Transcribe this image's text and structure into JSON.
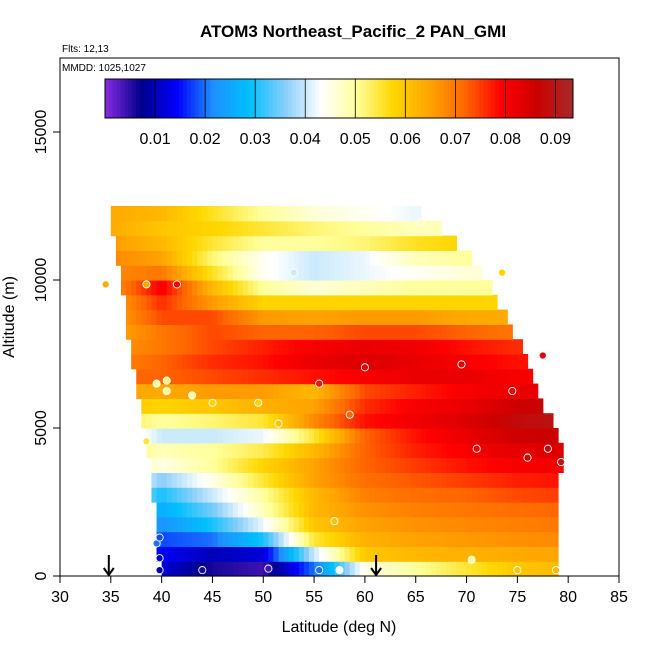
{
  "chart_data": {
    "type": "heatmap",
    "title": "ATOM3 Northeast_Pacific_2 PAN_GMI",
    "notes": [
      "Flts: 12,13",
      "MMDD: 1025,1027"
    ],
    "xlabel": "Latitude (deg N)",
    "ylabel": "Altitude (m)",
    "xlim": [
      30,
      85
    ],
    "ylim": [
      0,
      17500
    ],
    "x_ticks": [
      30,
      35,
      40,
      45,
      50,
      55,
      60,
      65,
      70,
      75,
      80,
      85
    ],
    "y_ticks": [
      0,
      5000,
      10000,
      15000
    ],
    "colorbar": {
      "min": 0.0,
      "max": 0.0935,
      "ticks": [
        0.01,
        0.02,
        0.03,
        0.04,
        0.05,
        0.06,
        0.07,
        0.08,
        0.09
      ],
      "colors": [
        "#8a2be2",
        "#00008b",
        "#0000ff",
        "#1e90ff",
        "#00bfff",
        "#87cefa",
        "#ffffff",
        "#ffff99",
        "#ffd700",
        "#ffa500",
        "#ff6600",
        "#ff0000",
        "#cc0000",
        "#a52a2a"
      ]
    },
    "arrows_x": [
      34.8,
      61.1
    ],
    "grid": {
      "lat_step": 0.5,
      "altitude_levels_m": [
        250,
        750,
        1250,
        1750,
        2250,
        2750,
        3250,
        3750,
        4250,
        4750,
        5250,
        5750,
        6250,
        6750,
        7250,
        7750,
        8250,
        8750,
        9250,
        9750,
        10250,
        10750,
        11250,
        11750,
        12250
      ],
      "row_lat_extent": [
        [
          40,
          79
        ],
        [
          39.5,
          79
        ],
        [
          39.5,
          79
        ],
        [
          39.5,
          79
        ],
        [
          39.5,
          79
        ],
        [
          39,
          79
        ],
        [
          39,
          79
        ],
        [
          39,
          79.5
        ],
        [
          38.5,
          79.5
        ],
        [
          38.5,
          79
        ],
        [
          38,
          78.5
        ],
        [
          38,
          77.5
        ],
        [
          37.5,
          77
        ],
        [
          37.5,
          76.5
        ],
        [
          37,
          76
        ],
        [
          37,
          75.5
        ],
        [
          36.5,
          74.5
        ],
        [
          36.5,
          74
        ],
        [
          36.5,
          73
        ],
        [
          36,
          72.5
        ],
        [
          36,
          71.5
        ],
        [
          35.5,
          70.5
        ],
        [
          35.5,
          69
        ],
        [
          35,
          67.5
        ],
        [
          35,
          65.5
        ]
      ],
      "profile_lats": [
        35,
        40,
        45,
        50,
        55,
        60,
        65,
        70,
        75,
        80
      ],
      "profile_values": [
        [
          0.03,
          0.012,
          0.006,
          0.004,
          0.02,
          0.045,
          0.05,
          0.055,
          0.06,
          0.062
        ],
        [
          0.03,
          0.014,
          0.01,
          0.012,
          0.04,
          0.06,
          0.062,
          0.063,
          0.064,
          0.065
        ],
        [
          0.04,
          0.018,
          0.02,
          0.03,
          0.055,
          0.063,
          0.065,
          0.066,
          0.067,
          0.068
        ],
        [
          0.04,
          0.022,
          0.03,
          0.042,
          0.06,
          0.065,
          0.067,
          0.068,
          0.069,
          0.07
        ],
        [
          0.04,
          0.026,
          0.035,
          0.048,
          0.062,
          0.067,
          0.069,
          0.07,
          0.071,
          0.072
        ],
        [
          0.045,
          0.03,
          0.04,
          0.05,
          0.062,
          0.069,
          0.071,
          0.072,
          0.074,
          0.075
        ],
        [
          0.05,
          0.036,
          0.045,
          0.055,
          0.065,
          0.071,
          0.073,
          0.075,
          0.077,
          0.078
        ],
        [
          0.055,
          0.045,
          0.05,
          0.058,
          0.065,
          0.072,
          0.075,
          0.078,
          0.08,
          0.081
        ],
        [
          0.055,
          0.048,
          0.05,
          0.054,
          0.062,
          0.072,
          0.077,
          0.08,
          0.083,
          0.084
        ],
        [
          0.05,
          0.04,
          0.04,
          0.042,
          0.055,
          0.072,
          0.078,
          0.082,
          0.086,
          0.087
        ],
        [
          0.055,
          0.05,
          0.052,
          0.055,
          0.068,
          0.078,
          0.081,
          0.084,
          0.088,
          0.09
        ],
        [
          0.06,
          0.058,
          0.06,
          0.063,
          0.065,
          0.076,
          0.08,
          0.082,
          0.086,
          0.088
        ],
        [
          0.065,
          0.064,
          0.066,
          0.066,
          0.062,
          0.074,
          0.077,
          0.08,
          0.082,
          0.083
        ],
        [
          0.072,
          0.072,
          0.074,
          0.076,
          0.078,
          0.08,
          0.082,
          0.082,
          0.08,
          0.08
        ],
        [
          0.068,
          0.072,
          0.076,
          0.078,
          0.082,
          0.084,
          0.082,
          0.08,
          0.078,
          0.078
        ],
        [
          0.066,
          0.07,
          0.074,
          0.077,
          0.08,
          0.082,
          0.081,
          0.078,
          0.076,
          0.076
        ],
        [
          0.064,
          0.07,
          0.074,
          0.072,
          0.072,
          0.074,
          0.074,
          0.072,
          0.07,
          0.07
        ],
        [
          0.064,
          0.074,
          0.074,
          0.066,
          0.065,
          0.066,
          0.066,
          0.064,
          0.064,
          0.064
        ],
        [
          0.064,
          0.076,
          0.066,
          0.058,
          0.058,
          0.058,
          0.058,
          0.058,
          0.058,
          0.058
        ],
        [
          0.066,
          0.08,
          0.062,
          0.05,
          0.046,
          0.048,
          0.05,
          0.05,
          0.05,
          0.05
        ],
        [
          0.068,
          0.07,
          0.056,
          0.044,
          0.04,
          0.042,
          0.044,
          0.046,
          0.046,
          0.046
        ],
        [
          0.068,
          0.065,
          0.052,
          0.044,
          0.04,
          0.042,
          0.048,
          0.05,
          0.05,
          0.05
        ],
        [
          0.066,
          0.062,
          0.055,
          0.05,
          0.05,
          0.052,
          0.056,
          0.058,
          0.058,
          0.058
        ],
        [
          0.064,
          0.06,
          0.058,
          0.055,
          0.052,
          0.05,
          0.048,
          0.048,
          0.048,
          0.048
        ],
        [
          0.064,
          0.062,
          0.056,
          0.05,
          0.046,
          0.044,
          0.042,
          0.042,
          0.042,
          0.042
        ]
      ]
    },
    "samples": [
      [
        39.8,
        200,
        0.01
      ],
      [
        39.8,
        600,
        0.012
      ],
      [
        39.5,
        1100,
        0.02
      ],
      [
        39.8,
        1300,
        0.018
      ],
      [
        44.0,
        200,
        0.006
      ],
      [
        50.5,
        250,
        0.004
      ],
      [
        55.5,
        200,
        0.02
      ],
      [
        57.5,
        200,
        0.045
      ],
      [
        70.5,
        550,
        0.05
      ],
      [
        75.0,
        200,
        0.06
      ],
      [
        78.8,
        200,
        0.062
      ],
      [
        57.0,
        1850,
        0.06
      ],
      [
        79.3,
        3850,
        0.09
      ],
      [
        76.0,
        4000,
        0.088
      ],
      [
        78.0,
        4300,
        0.088
      ],
      [
        71.0,
        4300,
        0.082
      ],
      [
        38.5,
        4550,
        0.055
      ],
      [
        51.5,
        5150,
        0.06
      ],
      [
        58.5,
        5450,
        0.072
      ],
      [
        45.0,
        5850,
        0.058
      ],
      [
        49.5,
        5850,
        0.058
      ],
      [
        40.5,
        6250,
        0.05
      ],
      [
        43.0,
        6100,
        0.05
      ],
      [
        55.5,
        6500,
        0.078
      ],
      [
        40.5,
        6600,
        0.052
      ],
      [
        74.5,
        6250,
        0.08
      ],
      [
        39.5,
        6500,
        0.05
      ],
      [
        60.0,
        7050,
        0.082
      ],
      [
        69.5,
        7150,
        0.084
      ],
      [
        77.5,
        7450,
        0.083
      ],
      [
        38.5,
        9850,
        0.064
      ],
      [
        41.5,
        9850,
        0.08
      ],
      [
        53.0,
        10250,
        0.04
      ],
      [
        73.5,
        10250,
        0.058
      ],
      [
        65.5,
        11950,
        0.048
      ],
      [
        34.5,
        9850,
        0.064
      ]
    ]
  }
}
